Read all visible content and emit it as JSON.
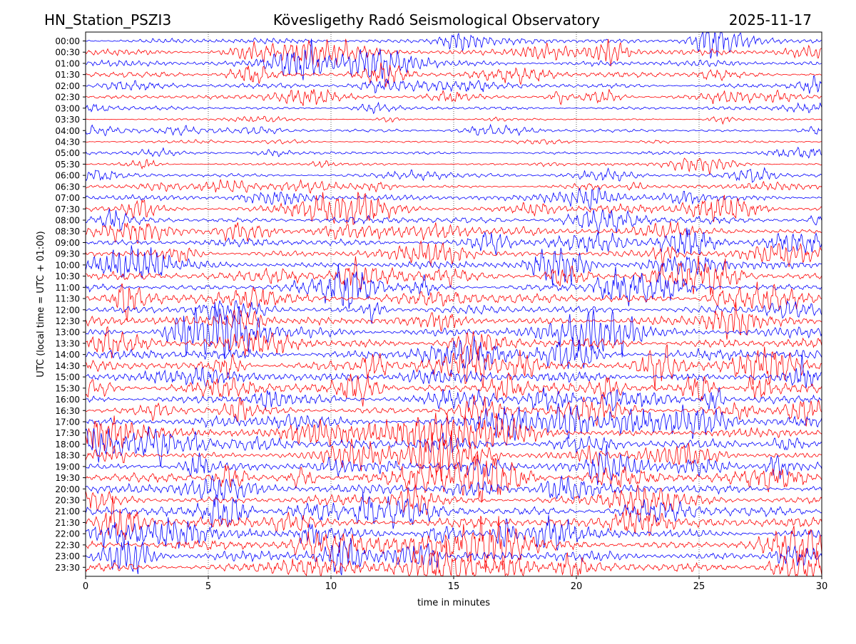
{
  "header": {
    "station": "HN_Station_PSZI3",
    "observatory": "Kövesligethy Radó Seismological Observatory",
    "date": "2025-11-17"
  },
  "chart_data": {
    "type": "line",
    "title": "Kövesligethy Radó Seismological Observatory",
    "xlabel": "time in minutes",
    "ylabel": "UTC (local time = UTC + 01:00)",
    "xlim": [
      0,
      30
    ],
    "x_ticks": [
      0,
      5,
      10,
      15,
      20,
      25,
      30
    ],
    "x_tick_labels": [
      "0",
      "5",
      "10",
      "15",
      "20",
      "25",
      "30"
    ],
    "grid": "vertical dotted lines at 5, 10, 15, 20, 25 minutes",
    "row_labels": [
      "00:00",
      "00:30",
      "01:00",
      "01:30",
      "02:00",
      "02:30",
      "03:00",
      "03:30",
      "04:00",
      "04:30",
      "05:00",
      "05:30",
      "06:00",
      "06:30",
      "07:00",
      "07:30",
      "08:00",
      "08:30",
      "09:00",
      "09:30",
      "10:00",
      "10:30",
      "11:00",
      "11:30",
      "12:00",
      "12:30",
      "13:00",
      "13:30",
      "14:00",
      "14:30",
      "15:00",
      "15:30",
      "16:00",
      "16:30",
      "17:00",
      "17:30",
      "18:00",
      "18:30",
      "19:00",
      "19:30",
      "20:00",
      "20:30",
      "21:00",
      "21:30",
      "22:00",
      "22:30",
      "23:00",
      "23:30"
    ],
    "trace_colors": [
      "#0000ff",
      "#ff0000"
    ],
    "relative_amplitude": [
      0.55,
      0.65,
      0.6,
      0.6,
      0.5,
      0.4,
      0.35,
      0.2,
      0.3,
      0.2,
      0.3,
      0.25,
      0.35,
      0.35,
      0.55,
      0.75,
      0.7,
      0.6,
      0.75,
      0.7,
      0.75,
      0.75,
      0.8,
      0.85,
      0.85,
      0.95,
      1.0,
      1.0,
      1.0,
      1.0,
      1.0,
      0.95,
      0.9,
      0.9,
      0.95,
      0.9,
      0.85,
      0.8,
      0.8,
      0.85,
      0.9,
      0.95,
      1.0,
      1.0,
      1.0,
      1.0,
      1.0,
      0.95
    ]
  }
}
